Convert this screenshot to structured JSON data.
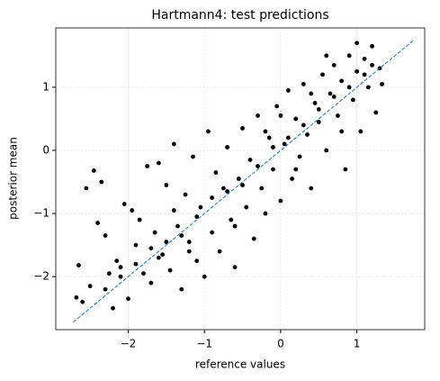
{
  "chart_data": {
    "type": "scatter",
    "title": "Hartmann4: test predictions",
    "x_label": "reference values",
    "y_label": "posterior mean",
    "xlim": [
      -2.95,
      1.89
    ],
    "ylim": [
      -2.84,
      1.94
    ],
    "xticks": [
      {
        "value": -2,
        "label": "−2"
      },
      {
        "value": -1,
        "label": "−1"
      },
      0,
      1
    ],
    "yticks": [
      {
        "value": -2,
        "label": "−2"
      },
      {
        "value": -1,
        "label": "−1"
      },
      0,
      1
    ],
    "grid": true,
    "reference_line": {
      "color": "#1f77b4",
      "x": [
        -2.72,
        1.74
      ],
      "values": [
        -2.72,
        1.74
      ]
    },
    "series": [
      {
        "color": "#000000",
        "x": [
          -2.68,
          -2.65,
          -2.6,
          -2.55,
          -2.5,
          -2.45,
          -2.4,
          -2.35,
          -2.3,
          -2.25,
          -2.2,
          -2.15,
          -2.1,
          -2.05,
          -2.0,
          -1.95,
          -1.9,
          -1.85,
          -1.8,
          -1.75,
          -1.7,
          -1.65,
          -1.6,
          -1.55,
          -1.5,
          -1.45,
          -1.4,
          -1.35,
          -1.3,
          -1.25,
          -1.2,
          -1.15,
          -1.1,
          -1.05,
          -1.0,
          -0.95,
          -0.9,
          -0.85,
          -0.8,
          -0.75,
          -0.7,
          -0.65,
          -0.6,
          -0.55,
          -0.5,
          -0.45,
          -0.4,
          -0.35,
          -0.3,
          -0.25,
          -0.2,
          -0.15,
          -0.1,
          -0.05,
          0.0,
          0.05,
          0.1,
          0.15,
          0.2,
          0.25,
          0.3,
          0.35,
          0.4,
          0.45,
          0.5,
          0.55,
          0.6,
          0.65,
          0.7,
          0.75,
          0.8,
          0.85,
          0.9,
          0.95,
          1.0,
          1.05,
          1.1,
          1.15,
          1.2,
          1.25,
          1.3,
          1.33,
          -2.3,
          -2.1,
          -1.9,
          -1.7,
          -1.5,
          -1.3,
          -1.1,
          -0.9,
          -0.7,
          -0.5,
          -0.3,
          -0.1,
          0.1,
          0.3,
          0.5,
          0.7,
          0.9,
          1.1,
          1.2,
          0.6,
          1.0,
          0.8,
          0.4,
          0.2,
          -0.6,
          -1.2,
          -1.6,
          -1.4,
          -0.2,
          0.0
        ],
        "values": [
          -2.33,
          -1.82,
          -2.4,
          -0.6,
          -2.15,
          -0.32,
          -1.15,
          -0.5,
          -1.35,
          -1.95,
          -2.5,
          -1.75,
          -1.85,
          -0.85,
          -2.35,
          -0.95,
          -1.5,
          -1.1,
          -1.95,
          -0.25,
          -2.1,
          -1.3,
          -0.2,
          -1.65,
          -0.55,
          -1.9,
          0.1,
          -1.2,
          -2.2,
          -0.7,
          -1.45,
          -0.1,
          -1.75,
          -0.9,
          -2.0,
          0.3,
          -1.3,
          -0.35,
          -1.6,
          -0.6,
          0.05,
          -1.1,
          -1.85,
          -0.45,
          0.35,
          -0.9,
          -0.15,
          -1.4,
          0.55,
          -0.6,
          -1.0,
          0.2,
          -0.3,
          0.7,
          -0.8,
          0.1,
          0.95,
          -0.45,
          0.5,
          -0.1,
          1.05,
          0.25,
          -0.6,
          0.75,
          0.45,
          1.2,
          0.0,
          0.9,
          1.35,
          0.55,
          1.1,
          -0.3,
          1.5,
          0.8,
          1.25,
          0.3,
          1.45,
          1.0,
          1.65,
          0.6,
          1.3,
          1.05,
          -2.2,
          -2.0,
          -1.8,
          -1.55,
          -1.45,
          -1.35,
          -1.05,
          -0.75,
          -0.65,
          -0.55,
          -0.25,
          0.05,
          0.2,
          0.4,
          0.65,
          0.85,
          1.0,
          1.2,
          1.35,
          1.5,
          1.7,
          0.3,
          0.9,
          -0.3,
          -1.2,
          -1.6,
          -1.7,
          -0.95,
          0.3,
          0.55
        ]
      }
    ]
  }
}
